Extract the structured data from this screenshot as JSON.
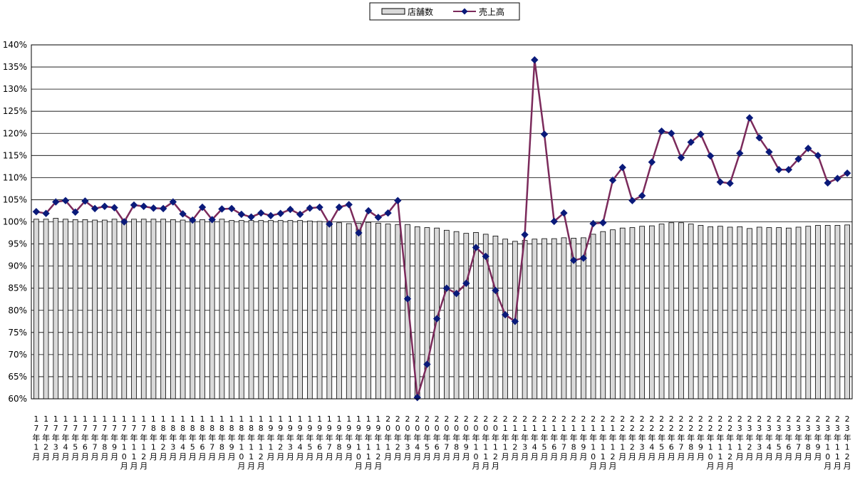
{
  "chart_data": {
    "type": "bar+line",
    "legend": [
      {
        "label": "店舗数",
        "kind": "bar"
      },
      {
        "label": "売上高",
        "kind": "line"
      }
    ],
    "legend_position": "top-center",
    "ylim": [
      60,
      140
    ],
    "ytick_step": 5,
    "ytick_suffix": "%",
    "grid": true,
    "colors": {
      "bar_fill": "#d9d9d9",
      "bar_stroke": "#000000",
      "line": "#7b2a5b",
      "marker": "#0a1a7a"
    },
    "x": [
      "17年1月",
      "17年2月",
      "17年3月",
      "17年4月",
      "17年5月",
      "17年6月",
      "17年7月",
      "17年8月",
      "17年9月",
      "17年10月",
      "17年11月",
      "17年12月",
      "18年1月",
      "18年2月",
      "18年3月",
      "18年4月",
      "18年5月",
      "18年6月",
      "18年7月",
      "18年8月",
      "18年9月",
      "18年10月",
      "18年11月",
      "18年12月",
      "19年1月",
      "19年2月",
      "19年3月",
      "19年4月",
      "19年5月",
      "19年6月",
      "19年7月",
      "19年8月",
      "19年9月",
      "19年10月",
      "19年11月",
      "19年12月",
      "20年1月",
      "20年2月",
      "20年3月",
      "20年4月",
      "20年5月",
      "20年6月",
      "20年7月",
      "20年8月",
      "20年9月",
      "20年10月",
      "20年11月",
      "20年12月",
      "21年1月",
      "21年2月",
      "21年3月",
      "21年4月",
      "21年5月",
      "21年6月",
      "21年7月",
      "21年8月",
      "21年9月",
      "21年10月",
      "21年11月",
      "21年12月",
      "22年1月",
      "22年2月",
      "22年3月",
      "22年4月",
      "22年5月",
      "22年6月",
      "22年7月",
      "22年8月",
      "22年9月",
      "22年10月",
      "22年11月",
      "22年12月",
      "23年1月",
      "23年2月",
      "23年3月",
      "23年4月",
      "23年5月",
      "23年6月",
      "23年7月",
      "23年8月",
      "23年9月",
      "23年10月",
      "23年11月",
      "23年12月"
    ],
    "series": [
      {
        "name": "店舗数",
        "type": "bar",
        "values": [
          100.6,
          100.6,
          100.8,
          100.6,
          100.5,
          100.5,
          100.4,
          100.4,
          100.6,
          100.5,
          100.6,
          100.6,
          100.6,
          100.6,
          100.5,
          100.4,
          100.5,
          100.5,
          100.4,
          100.6,
          100.3,
          100.3,
          100.3,
          100.3,
          100.3,
          100.3,
          100.3,
          100.3,
          100.2,
          100.1,
          100.0,
          99.8,
          99.6,
          99.7,
          99.9,
          99.7,
          99.5,
          99.4,
          99.4,
          98.9,
          98.7,
          98.6,
          98.1,
          97.8,
          97.4,
          97.6,
          97.2,
          96.8,
          96.1,
          95.6,
          95.8,
          96.1,
          96.2,
          96.2,
          96.4,
          96.3,
          96.4,
          97.2,
          97.8,
          98.2,
          98.6,
          98.7,
          99.0,
          99.1,
          99.5,
          99.8,
          99.8,
          99.5,
          99.2,
          98.9,
          99.0,
          98.8,
          98.9,
          98.5,
          98.8,
          98.7,
          98.7,
          98.6,
          98.8,
          99.0,
          99.2,
          99.2,
          99.2,
          99.3
        ]
      },
      {
        "name": "売上高",
        "type": "line",
        "values": [
          102.3,
          101.9,
          104.5,
          104.8,
          102.2,
          104.7,
          103.0,
          103.5,
          103.2,
          100.0,
          103.8,
          103.5,
          103.1,
          103.0,
          104.5,
          101.8,
          100.4,
          103.3,
          100.5,
          102.9,
          103.0,
          101.7,
          101.1,
          102.0,
          101.4,
          101.9,
          102.8,
          101.7,
          103.1,
          103.3,
          99.5,
          103.3,
          103.9,
          97.5,
          102.5,
          101.0,
          102.0,
          104.8,
          82.6,
          60.3,
          67.8,
          78.1,
          85.0,
          83.8,
          86.1,
          94.2,
          92.2,
          84.5,
          79.0,
          77.5,
          97.1,
          136.6,
          119.8,
          100.1,
          102.0,
          91.3,
          91.8,
          99.6,
          99.8,
          109.4,
          112.3,
          104.8,
          105.9,
          113.5,
          120.5,
          120.0,
          114.5,
          118.0,
          119.8,
          114.9,
          109.0,
          108.7,
          115.5,
          123.5,
          119.0,
          115.8,
          111.8,
          111.8,
          114.2,
          116.6,
          115.0,
          108.8,
          109.8,
          111.0
        ]
      }
    ]
  }
}
